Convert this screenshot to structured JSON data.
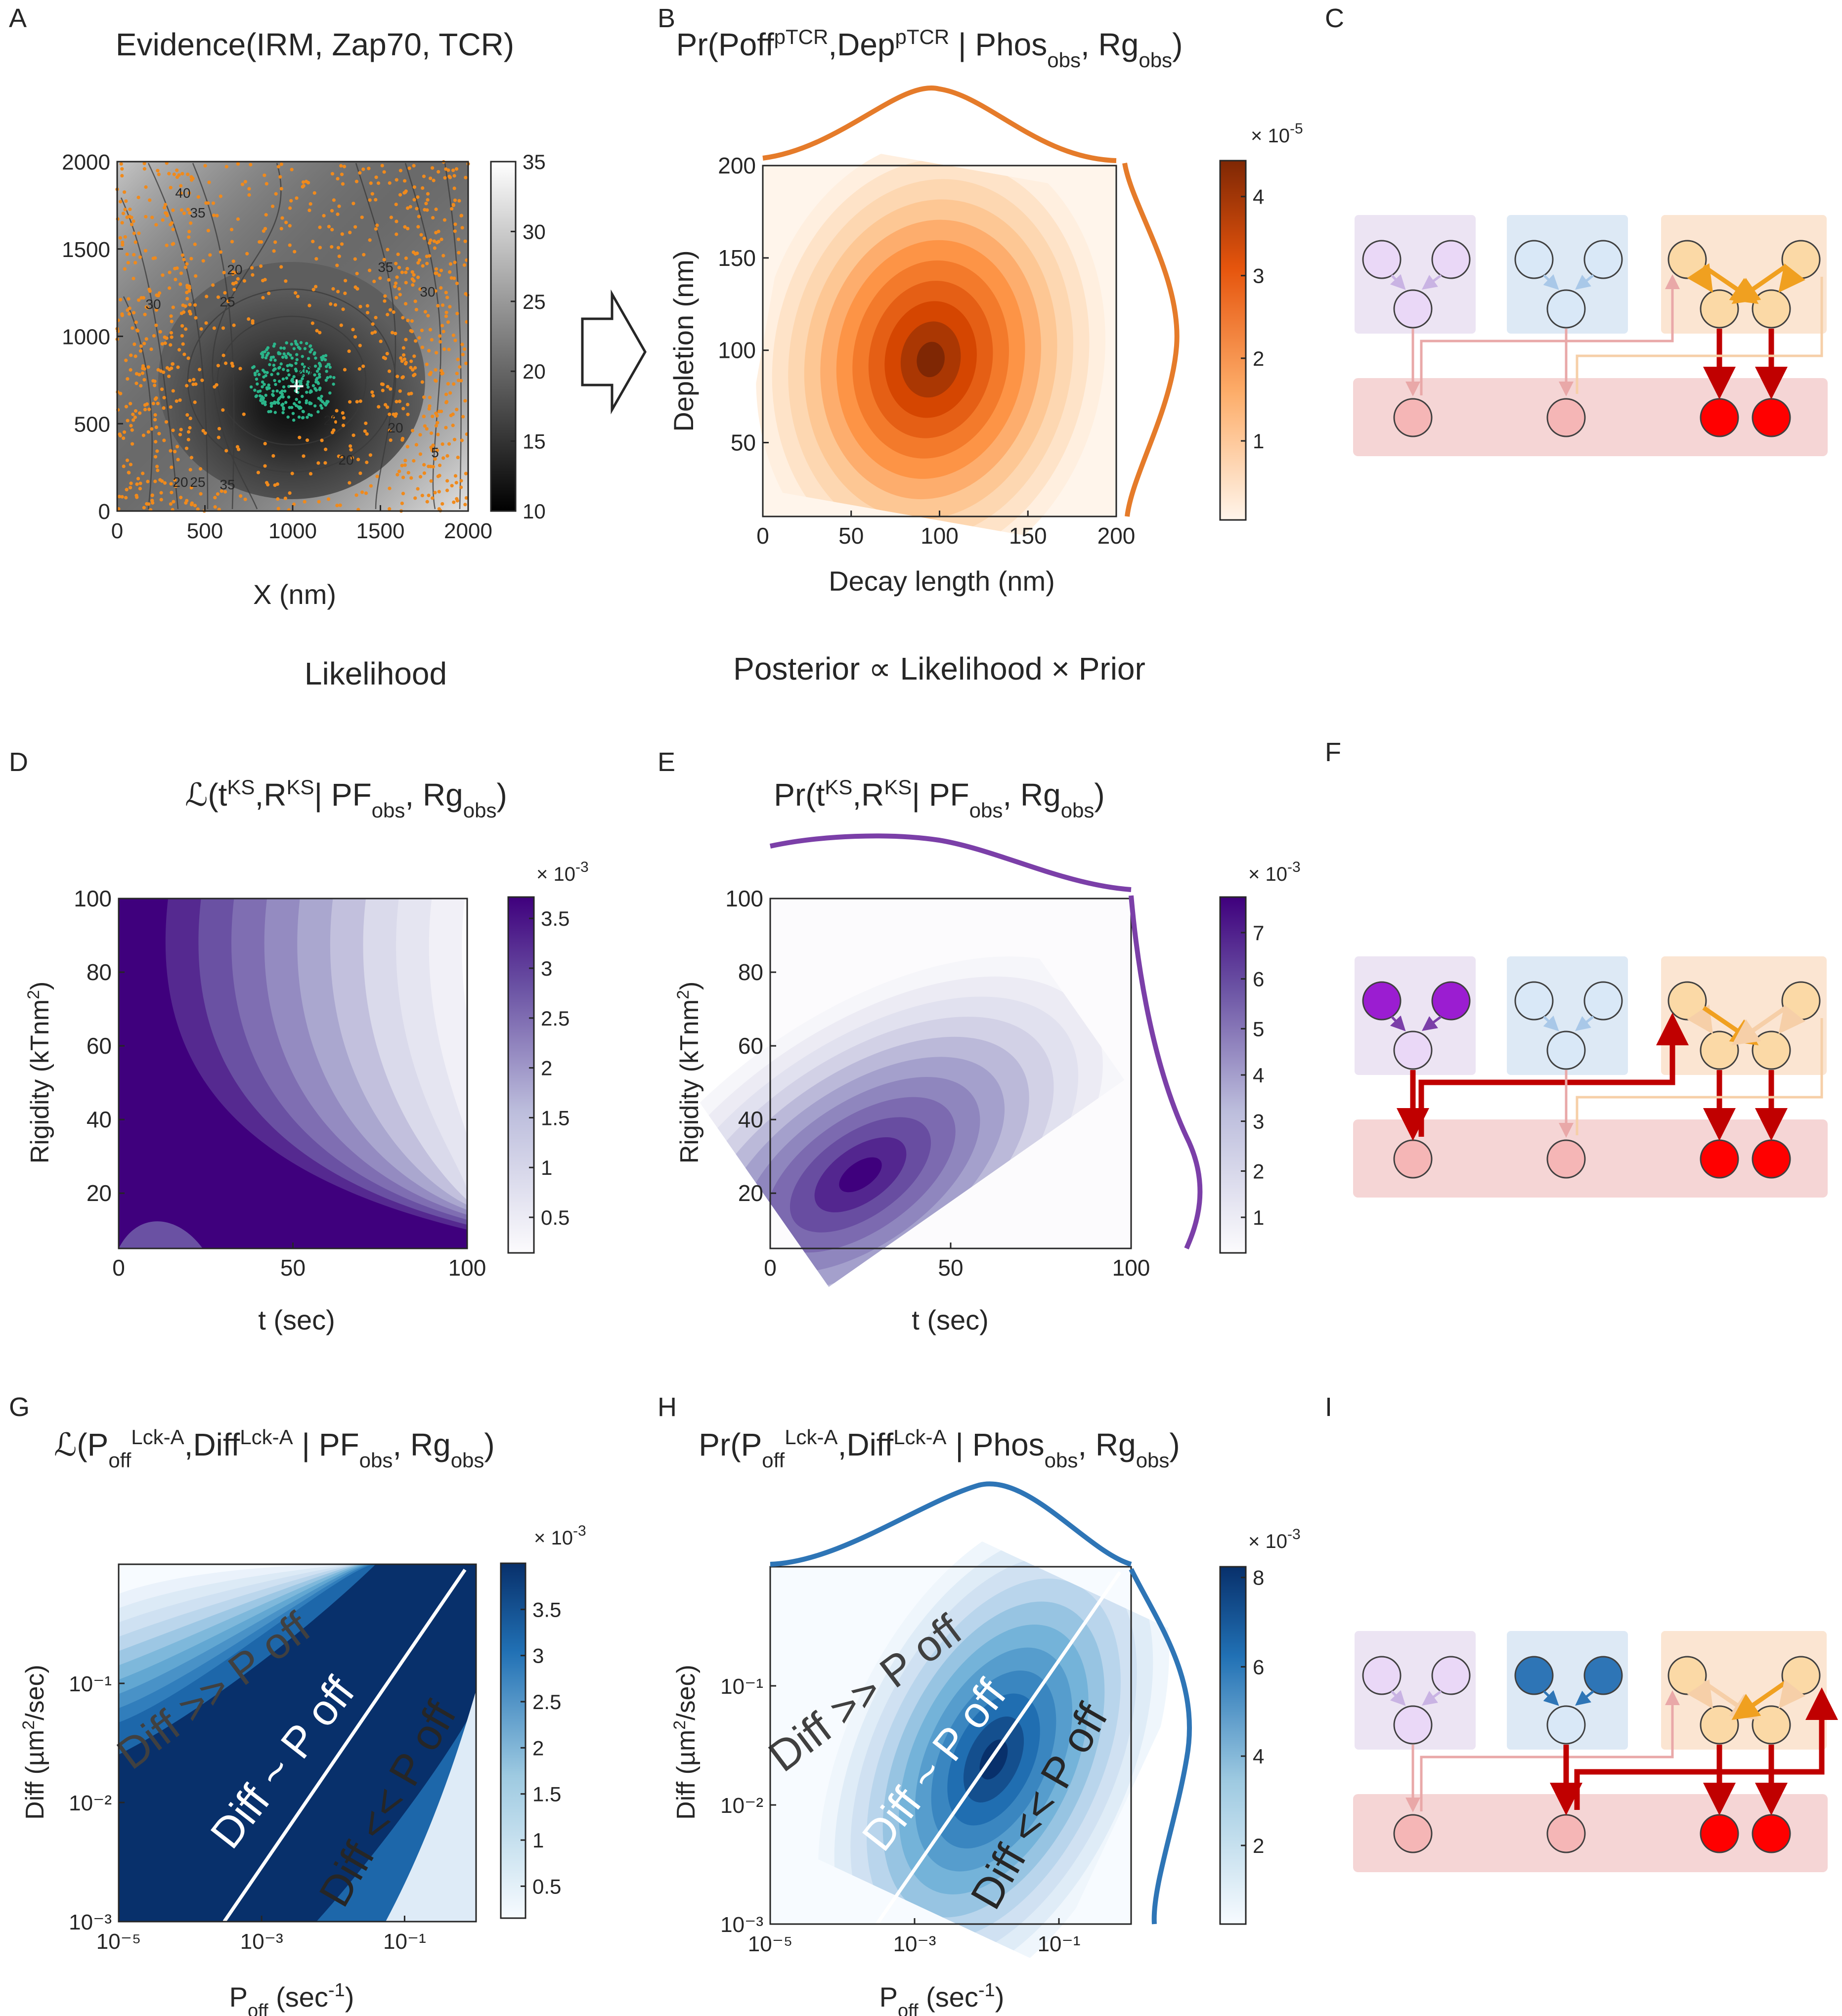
{
  "chart_data": [
    {
      "panel": "A",
      "type": "heatmap",
      "title": "Evidence(IRM, Zap70, TCR)",
      "xlabel": "X (nm)",
      "ylabel": "",
      "xlim": [
        0,
        2000
      ],
      "ylim": [
        0,
        2000
      ],
      "xticks": [
        "0",
        "500",
        "1000",
        "1500",
        "2000"
      ],
      "yticks": [
        "0",
        "500",
        "1000",
        "1500",
        "2000"
      ],
      "colorbar_ticks": [
        "10",
        "15",
        "20",
        "25",
        "30",
        "35"
      ],
      "contour_labels": [
        "40",
        "35",
        "30",
        "25",
        "20",
        "35",
        "30",
        "25",
        "20",
        "20",
        "25",
        "35",
        "20",
        "5",
        "20"
      ],
      "marker": "+",
      "points": "orange TCR localizations and green Zap70 localizations"
    },
    {
      "panel": "B",
      "type": "heatmap",
      "title": "Pr(Poff^pTCR,Dep^pTCR | Phos_obs, Rg_obs)",
      "xlabel": "Decay length (nm)",
      "ylabel": "Depletion (nm)",
      "xlim": [
        0,
        200
      ],
      "ylim": [
        10,
        200
      ],
      "xticks": [
        "0",
        "50",
        "100",
        "150",
        "200"
      ],
      "yticks": [
        "50",
        "100",
        "150",
        "200"
      ],
      "colorbar_ticks": [
        "1",
        "2",
        "3",
        "4"
      ],
      "colorbar_exponent": "-5",
      "peak": [
        95,
        95
      ]
    },
    {
      "panel": "D",
      "type": "heatmap",
      "title": "ℒ(t^KS,R^KS | PF_obs, Rg_obs)",
      "xlabel": "t (sec)",
      "ylabel": "Rigidity (kTnm²)",
      "xlim": [
        0,
        100
      ],
      "ylim": [
        5,
        100
      ],
      "xticks": [
        "0",
        "50",
        "100"
      ],
      "yticks": [
        "20",
        "40",
        "60",
        "80",
        "100"
      ],
      "colorbar_ticks": [
        "0.5",
        "1",
        "1.5",
        "2",
        "2.5",
        "3",
        "3.5"
      ],
      "colorbar_exponent": "-3"
    },
    {
      "panel": "E",
      "type": "heatmap",
      "title": "Pr(t^KS,R^KS | PF_obs, Rg_obs)",
      "xlabel": "t (sec)",
      "ylabel": "Rigidity (kTnm²)",
      "xlim": [
        0,
        100
      ],
      "ylim": [
        5,
        100
      ],
      "xticks": [
        "0",
        "50",
        "100"
      ],
      "yticks": [
        "20",
        "40",
        "60",
        "80",
        "100"
      ],
      "colorbar_ticks": [
        "1",
        "2",
        "3",
        "4",
        "5",
        "6",
        "7"
      ],
      "colorbar_exponent": "-3",
      "peak": [
        25,
        25
      ]
    },
    {
      "panel": "G",
      "type": "heatmap",
      "title": "ℒ(P_off^Lck-A,Diff^Lck-A | PF_obs, Rg_obs)",
      "xlabel": "P_off (sec⁻¹)",
      "ylabel": "Diff (µm²/sec)",
      "xscale": "log",
      "yscale": "log",
      "xlim": [
        1e-05,
        1
      ],
      "ylim": [
        0.001,
        1
      ],
      "xticks": [
        "10⁻⁵",
        "10⁻³",
        "10⁻¹"
      ],
      "yticks": [
        "10⁻³",
        "10⁻²",
        "10⁻¹"
      ],
      "colorbar_ticks": [
        "0.5",
        "1",
        "1.5",
        "2",
        "2.5",
        "3",
        "3.5"
      ],
      "colorbar_exponent": "-3",
      "region_labels": [
        "Diff >> P off",
        "Diff ~ P off",
        "Diff << P off"
      ]
    },
    {
      "panel": "H",
      "type": "heatmap",
      "title": "Pr(P_off^Lck-A,Diff^Lck-A | Phos_obs, Rg_obs)",
      "xlabel": "P_off (sec⁻¹)",
      "ylabel": "Diff (µm²/sec)",
      "xscale": "log",
      "yscale": "log",
      "xlim": [
        1e-05,
        1
      ],
      "ylim": [
        0.001,
        1
      ],
      "xticks": [
        "10⁻⁵",
        "10⁻³",
        "10⁻¹"
      ],
      "yticks": [
        "10⁻³",
        "10⁻²",
        "10⁻¹"
      ],
      "colorbar_ticks": [
        "2",
        "4",
        "6",
        "8"
      ],
      "colorbar_exponent": "-3",
      "region_labels": [
        "Diff >> P off",
        "Diff ~ P off",
        "Diff << P off"
      ]
    }
  ],
  "panel_letters": [
    "A",
    "B",
    "C",
    "D",
    "E",
    "F",
    "G",
    "H",
    "I"
  ],
  "section_labels": {
    "likelihood": "Likelihood",
    "posterior": "Posterior ∝ Likelihood × Prior"
  },
  "colors": {
    "orange": "#e57b2a",
    "purple": "#4a1486",
    "blue": "#08306b",
    "red": "#c00000",
    "amber": "#f0a020"
  }
}
